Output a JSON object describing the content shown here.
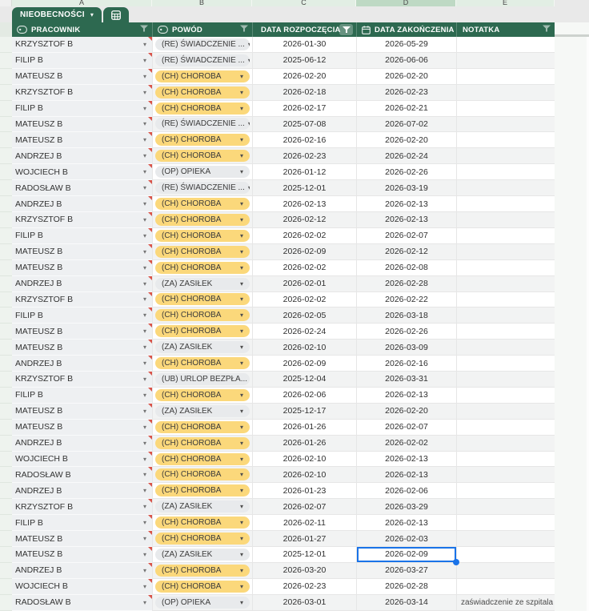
{
  "sheet": {
    "column_letters": [
      "A",
      "B",
      "C",
      "D",
      "E"
    ],
    "highlighted_column_letter": "D",
    "tab_label": "NIEOBECNOŚCI",
    "colors": {
      "header_green": "#2d6950",
      "chip_yellow": "#fbd87b",
      "chip_grey": "#e8eaec",
      "selection_blue": "#1a73e8",
      "note_marker_red": "#d8544a"
    }
  },
  "table": {
    "columns": [
      {
        "label": "PRACOWNIK",
        "type_icon": "dropdown-chip-icon",
        "has_filter": true
      },
      {
        "label": "POWÓD",
        "type_icon": "dropdown-chip-icon",
        "has_filter": true
      },
      {
        "label": "DATA ROZPOCZĘCIA",
        "has_filter": true
      },
      {
        "label": "DATA ZAKOŃCZENIA",
        "type_icon": "calendar-icon",
        "has_filter": true
      },
      {
        "label": "NOTATKA",
        "has_filter": true
      }
    ],
    "rows": [
      {
        "employee": "KRZYSZTOF B",
        "reason": "(RE) ŚWIADCZENIE ...",
        "chip": "grey",
        "start": "2026-01-30",
        "end": "2026-05-29",
        "note": ""
      },
      {
        "employee": "FILIP B",
        "reason": "(RE) ŚWIADCZENIE ...",
        "chip": "grey",
        "start": "2025-06-12",
        "end": "2026-06-06",
        "note": ""
      },
      {
        "employee": "MATEUSZ B",
        "reason": "(CH) CHOROBA",
        "chip": "yellow",
        "start": "2026-02-20",
        "end": "2026-02-20",
        "note": ""
      },
      {
        "employee": "KRZYSZTOF B",
        "reason": "(CH) CHOROBA",
        "chip": "yellow",
        "start": "2026-02-18",
        "end": "2026-02-23",
        "note": ""
      },
      {
        "employee": "FILIP B",
        "reason": "(CH) CHOROBA",
        "chip": "yellow",
        "start": "2026-02-17",
        "end": "2026-02-21",
        "note": ""
      },
      {
        "employee": "MATEUSZ B",
        "reason": "(RE) ŚWIADCZENIE ...",
        "chip": "grey",
        "start": "2025-07-08",
        "end": "2026-07-02",
        "note": ""
      },
      {
        "employee": "MATEUSZ B",
        "reason": "(CH) CHOROBA",
        "chip": "yellow",
        "start": "2026-02-16",
        "end": "2026-02-20",
        "note": ""
      },
      {
        "employee": "ANDRZEJ B",
        "reason": "(CH) CHOROBA",
        "chip": "yellow",
        "start": "2026-02-23",
        "end": "2026-02-24",
        "note": ""
      },
      {
        "employee": "WOJCIECH B",
        "reason": "(OP) OPIEKA",
        "chip": "grey",
        "start": "2026-01-12",
        "end": "2026-02-26",
        "note": ""
      },
      {
        "employee": "RADOSŁAW B",
        "reason": "(RE) ŚWIADCZENIE ...",
        "chip": "grey",
        "start": "2025-12-01",
        "end": "2026-03-19",
        "note": ""
      },
      {
        "employee": "ANDRZEJ B",
        "reason": "(CH) CHOROBA",
        "chip": "yellow",
        "start": "2026-02-13",
        "end": "2026-02-13",
        "note": ""
      },
      {
        "employee": "KRZYSZTOF B",
        "reason": "(CH) CHOROBA",
        "chip": "yellow",
        "start": "2026-02-12",
        "end": "2026-02-13",
        "note": ""
      },
      {
        "employee": "FILIP B",
        "reason": "(CH) CHOROBA",
        "chip": "yellow",
        "start": "2026-02-02",
        "end": "2026-02-07",
        "note": ""
      },
      {
        "employee": "MATEUSZ B",
        "reason": "(CH) CHOROBA",
        "chip": "yellow",
        "start": "2026-02-09",
        "end": "2026-02-12",
        "note": ""
      },
      {
        "employee": "MATEUSZ B",
        "reason": "(CH) CHOROBA",
        "chip": "yellow",
        "start": "2026-02-02",
        "end": "2026-02-08",
        "note": ""
      },
      {
        "employee": "ANDRZEJ B",
        "reason": "(ZA) ZASIŁEK",
        "chip": "grey",
        "start": "2026-02-01",
        "end": "2026-02-28",
        "note": ""
      },
      {
        "employee": "KRZYSZTOF B",
        "reason": "(CH) CHOROBA",
        "chip": "yellow",
        "start": "2026-02-02",
        "end": "2026-02-22",
        "note": ""
      },
      {
        "employee": "FILIP B",
        "reason": "(CH) CHOROBA",
        "chip": "yellow",
        "start": "2026-02-05",
        "end": "2026-03-18",
        "note": ""
      },
      {
        "employee": "MATEUSZ B",
        "reason": "(CH) CHOROBA",
        "chip": "yellow",
        "start": "2026-02-24",
        "end": "2026-02-26",
        "note": ""
      },
      {
        "employee": "MATEUSZ B",
        "reason": "(ZA) ZASIŁEK",
        "chip": "grey",
        "start": "2026-02-10",
        "end": "2026-03-09",
        "note": ""
      },
      {
        "employee": "ANDRZEJ B",
        "reason": "(CH) CHOROBA",
        "chip": "yellow",
        "start": "2026-02-09",
        "end": "2026-02-16",
        "note": ""
      },
      {
        "employee": "KRZYSZTOF B",
        "reason": "(UB) URLOP BEZPŁA...",
        "chip": "grey",
        "start": "2025-12-04",
        "end": "2026-03-31",
        "note": ""
      },
      {
        "employee": "FILIP B",
        "reason": "(CH) CHOROBA",
        "chip": "yellow",
        "start": "2026-02-06",
        "end": "2026-02-13",
        "note": ""
      },
      {
        "employee": "MATEUSZ B",
        "reason": "(ZA) ZASIŁEK",
        "chip": "grey",
        "start": "2025-12-17",
        "end": "2026-02-20",
        "note": ""
      },
      {
        "employee": "MATEUSZ B",
        "reason": "(CH) CHOROBA",
        "chip": "yellow",
        "start": "2026-01-26",
        "end": "2026-02-07",
        "note": ""
      },
      {
        "employee": "ANDRZEJ B",
        "reason": "(CH) CHOROBA",
        "chip": "yellow",
        "start": "2026-01-26",
        "end": "2026-02-02",
        "note": ""
      },
      {
        "employee": "WOJCIECH B",
        "reason": "(CH) CHOROBA",
        "chip": "yellow",
        "start": "2026-02-10",
        "end": "2026-02-13",
        "note": ""
      },
      {
        "employee": "RADOSŁAW B",
        "reason": "(CH) CHOROBA",
        "chip": "yellow",
        "start": "2026-02-10",
        "end": "2026-02-13",
        "note": ""
      },
      {
        "employee": "ANDRZEJ B",
        "reason": "(CH) CHOROBA",
        "chip": "yellow",
        "start": "2026-01-23",
        "end": "2026-02-06",
        "note": ""
      },
      {
        "employee": "KRZYSZTOF B",
        "reason": "(ZA) ZASIŁEK",
        "chip": "grey",
        "start": "2026-02-07",
        "end": "2026-03-29",
        "note": ""
      },
      {
        "employee": "FILIP B",
        "reason": "(CH) CHOROBA",
        "chip": "yellow",
        "start": "2026-02-11",
        "end": "2026-02-13",
        "note": ""
      },
      {
        "employee": "MATEUSZ B",
        "reason": "(CH) CHOROBA",
        "chip": "yellow",
        "start": "2026-01-27",
        "end": "2026-02-03",
        "note": ""
      },
      {
        "employee": "MATEUSZ B",
        "reason": "(ZA) ZASIŁEK",
        "chip": "grey",
        "start": "2025-12-01",
        "end": "2026-02-09",
        "note": ""
      },
      {
        "employee": "ANDRZEJ B",
        "reason": "(CH) CHOROBA",
        "chip": "yellow",
        "start": "2026-03-20",
        "end": "2026-03-27",
        "note": ""
      },
      {
        "employee": "WOJCIECH B",
        "reason": "(CH) CHOROBA",
        "chip": "yellow",
        "start": "2026-02-23",
        "end": "2026-02-28",
        "note": ""
      },
      {
        "employee": "RADOSŁAW B",
        "reason": "(OP) OPIEKA",
        "chip": "grey",
        "start": "2026-03-01",
        "end": "2026-03-14",
        "note": "zaświadczenie ze szpitala"
      }
    ]
  },
  "selection": {
    "row_index": 32,
    "row_number": 33,
    "column_label": "DATA ZAKOŃCZENIA",
    "value": "2026-02-09"
  }
}
